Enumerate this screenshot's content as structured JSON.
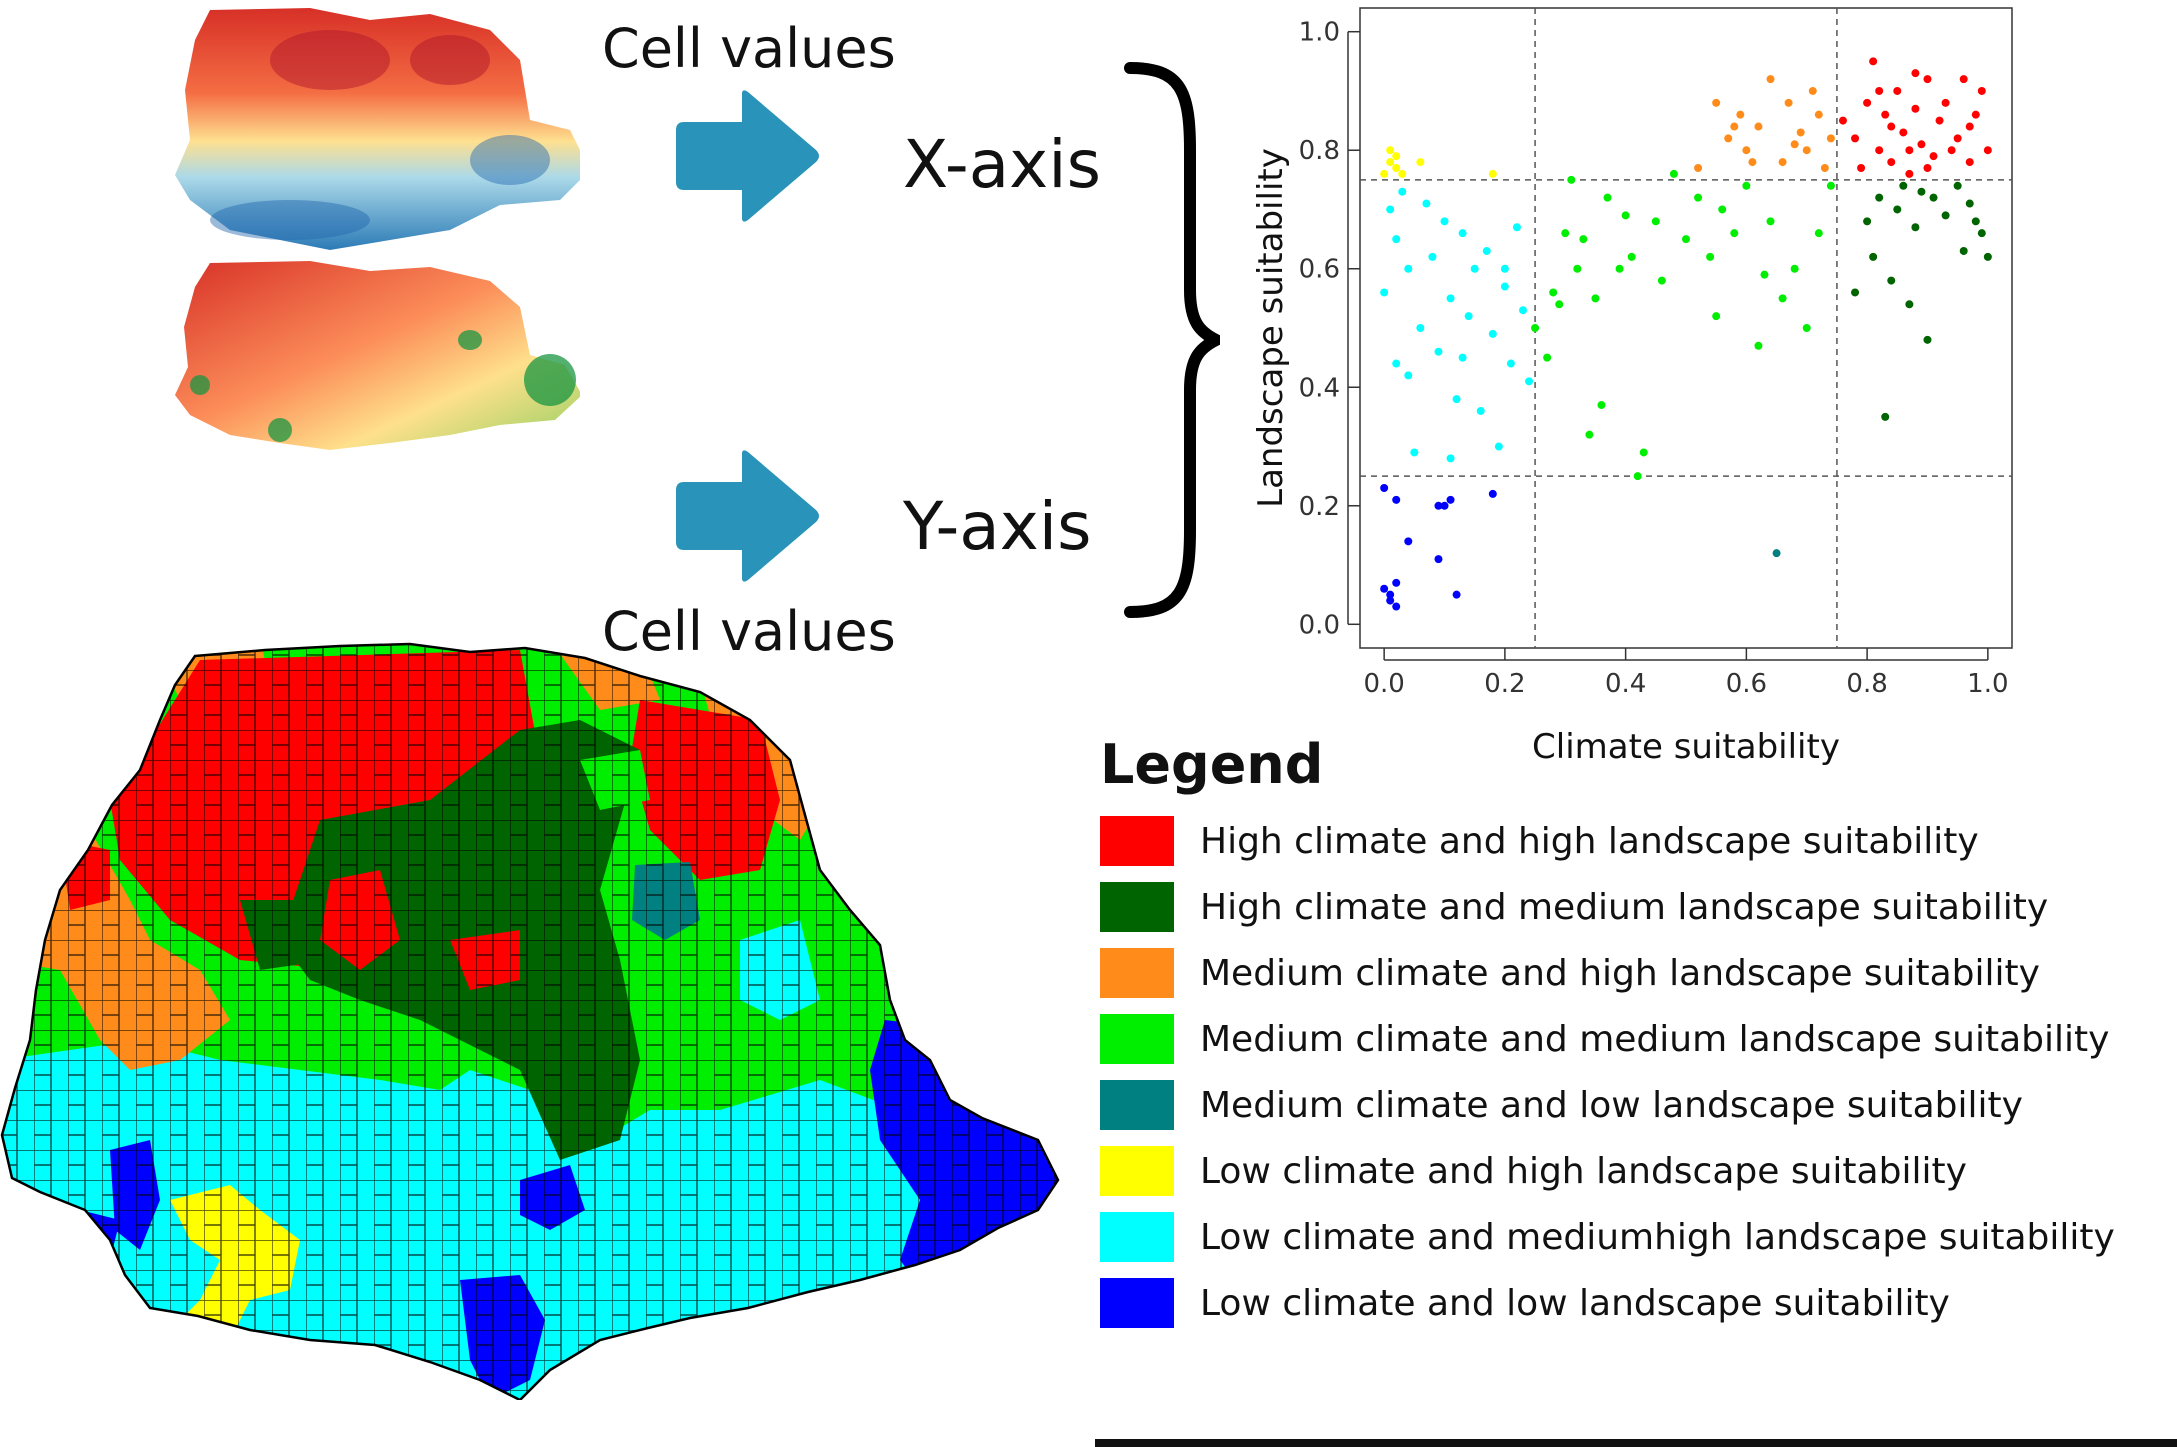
{
  "labels": {
    "cell_values_top": "Cell values",
    "cell_values_bottom": "Cell values",
    "x_axis": "X-axis",
    "y_axis": "Y-axis"
  },
  "colors": {
    "arrow": "#2a93b9",
    "high_high": "#ff0000",
    "high_medium": "#006400",
    "medium_high": "#ff8c1a",
    "medium_medium": "#00ee00",
    "medium_low": "#008080",
    "low_high": "#ffff00",
    "low_mediumhigh": "#00ffff",
    "low_low": "#0000ff"
  },
  "chart_data": {
    "type": "scatter",
    "xlabel": "Climate suitability",
    "ylabel": "Landscape suitability",
    "xlim": [
      0,
      1
    ],
    "ylim": [
      0,
      1
    ],
    "xticks": [
      "0.0",
      "0.2",
      "0.4",
      "0.6",
      "0.8",
      "1.0"
    ],
    "yticks": [
      "0.0",
      "0.2",
      "0.4",
      "0.6",
      "0.8",
      "1.0"
    ],
    "reference_lines": {
      "x": [
        0.25,
        0.75
      ],
      "y": [
        0.25,
        0.75
      ]
    },
    "grid": false,
    "series": [
      {
        "color": "#ff0000",
        "points": [
          [
            0.76,
            0.85
          ],
          [
            0.78,
            0.82
          ],
          [
            0.8,
            0.88
          ],
          [
            0.81,
            0.95
          ],
          [
            0.82,
            0.8
          ],
          [
            0.83,
            0.86
          ],
          [
            0.84,
            0.78
          ],
          [
            0.85,
            0.9
          ],
          [
            0.86,
            0.83
          ],
          [
            0.87,
            0.76
          ],
          [
            0.88,
            0.87
          ],
          [
            0.89,
            0.81
          ],
          [
            0.9,
            0.92
          ],
          [
            0.91,
            0.79
          ],
          [
            0.92,
            0.85
          ],
          [
            0.93,
            0.88
          ],
          [
            0.95,
            0.82
          ],
          [
            0.96,
            0.92
          ],
          [
            0.97,
            0.78
          ],
          [
            0.98,
            0.86
          ],
          [
            0.99,
            0.9
          ],
          [
            1.0,
            0.8
          ],
          [
            0.79,
            0.77
          ],
          [
            0.84,
            0.84
          ],
          [
            0.87,
            0.8
          ],
          [
            0.9,
            0.77
          ],
          [
            0.94,
            0.8
          ],
          [
            0.97,
            0.84
          ],
          [
            0.82,
            0.9
          ],
          [
            0.88,
            0.93
          ]
        ]
      },
      {
        "color": "#006400",
        "points": [
          [
            0.78,
            0.56
          ],
          [
            0.8,
            0.68
          ],
          [
            0.82,
            0.72
          ],
          [
            0.83,
            0.35
          ],
          [
            0.84,
            0.58
          ],
          [
            0.85,
            0.7
          ],
          [
            0.86,
            0.74
          ],
          [
            0.87,
            0.54
          ],
          [
            0.88,
            0.67
          ],
          [
            0.9,
            0.48
          ],
          [
            0.91,
            0.72
          ],
          [
            0.93,
            0.69
          ],
          [
            0.95,
            0.74
          ],
          [
            0.96,
            0.63
          ],
          [
            0.97,
            0.71
          ],
          [
            0.98,
            0.68
          ],
          [
            1.0,
            0.62
          ],
          [
            0.99,
            0.66
          ],
          [
            0.81,
            0.62
          ],
          [
            0.89,
            0.73
          ]
        ]
      },
      {
        "color": "#ff8c1a",
        "points": [
          [
            0.52,
            0.77
          ],
          [
            0.55,
            0.88
          ],
          [
            0.57,
            0.82
          ],
          [
            0.59,
            0.86
          ],
          [
            0.6,
            0.8
          ],
          [
            0.62,
            0.84
          ],
          [
            0.64,
            0.92
          ],
          [
            0.66,
            0.78
          ],
          [
            0.67,
            0.88
          ],
          [
            0.69,
            0.83
          ],
          [
            0.7,
            0.8
          ],
          [
            0.72,
            0.86
          ],
          [
            0.74,
            0.82
          ],
          [
            0.73,
            0.77
          ],
          [
            0.61,
            0.78
          ],
          [
            0.68,
            0.81
          ],
          [
            0.71,
            0.9
          ],
          [
            0.58,
            0.84
          ]
        ]
      },
      {
        "color": "#00ee00",
        "points": [
          [
            0.25,
            0.5
          ],
          [
            0.27,
            0.45
          ],
          [
            0.28,
            0.56
          ],
          [
            0.3,
            0.66
          ],
          [
            0.31,
            0.75
          ],
          [
            0.32,
            0.6
          ],
          [
            0.33,
            0.65
          ],
          [
            0.35,
            0.55
          ],
          [
            0.36,
            0.37
          ],
          [
            0.37,
            0.72
          ],
          [
            0.39,
            0.6
          ],
          [
            0.4,
            0.69
          ],
          [
            0.41,
            0.62
          ],
          [
            0.42,
            0.25
          ],
          [
            0.43,
            0.29
          ],
          [
            0.45,
            0.68
          ],
          [
            0.46,
            0.58
          ],
          [
            0.48,
            0.76
          ],
          [
            0.5,
            0.65
          ],
          [
            0.52,
            0.72
          ],
          [
            0.54,
            0.62
          ],
          [
            0.56,
            0.7
          ],
          [
            0.58,
            0.66
          ],
          [
            0.6,
            0.74
          ],
          [
            0.62,
            0.47
          ],
          [
            0.64,
            0.68
          ],
          [
            0.66,
            0.55
          ],
          [
            0.68,
            0.6
          ],
          [
            0.7,
            0.5
          ],
          [
            0.72,
            0.66
          ],
          [
            0.74,
            0.74
          ],
          [
            0.34,
            0.32
          ],
          [
            0.29,
            0.54
          ],
          [
            0.55,
            0.52
          ],
          [
            0.63,
            0.59
          ]
        ]
      },
      {
        "color": "#008080",
        "points": [
          [
            0.65,
            0.12
          ]
        ]
      },
      {
        "color": "#ffff00",
        "points": [
          [
            0.0,
            0.76
          ],
          [
            0.01,
            0.8
          ],
          [
            0.01,
            0.78
          ],
          [
            0.02,
            0.77
          ],
          [
            0.02,
            0.79
          ],
          [
            0.03,
            0.76
          ],
          [
            0.06,
            0.78
          ],
          [
            0.18,
            0.76
          ]
        ]
      },
      {
        "color": "#00ffff",
        "points": [
          [
            0.0,
            0.56
          ],
          [
            0.01,
            0.7
          ],
          [
            0.02,
            0.65
          ],
          [
            0.02,
            0.44
          ],
          [
            0.03,
            0.73
          ],
          [
            0.04,
            0.6
          ],
          [
            0.05,
            0.29
          ],
          [
            0.06,
            0.5
          ],
          [
            0.08,
            0.62
          ],
          [
            0.09,
            0.46
          ],
          [
            0.1,
            0.68
          ],
          [
            0.11,
            0.55
          ],
          [
            0.12,
            0.38
          ],
          [
            0.13,
            0.66
          ],
          [
            0.14,
            0.52
          ],
          [
            0.15,
            0.6
          ],
          [
            0.16,
            0.36
          ],
          [
            0.17,
            0.63
          ],
          [
            0.18,
            0.49
          ],
          [
            0.19,
            0.3
          ],
          [
            0.2,
            0.57
          ],
          [
            0.21,
            0.44
          ],
          [
            0.22,
            0.67
          ],
          [
            0.23,
            0.53
          ],
          [
            0.24,
            0.41
          ],
          [
            0.11,
            0.28
          ],
          [
            0.04,
            0.42
          ],
          [
            0.07,
            0.71
          ],
          [
            0.13,
            0.45
          ],
          [
            0.2,
            0.6
          ]
        ]
      },
      {
        "color": "#0000ff",
        "points": [
          [
            0.0,
            0.23
          ],
          [
            0.01,
            0.05
          ],
          [
            0.01,
            0.04
          ],
          [
            0.02,
            0.07
          ],
          [
            0.02,
            0.03
          ],
          [
            0.02,
            0.21
          ],
          [
            0.04,
            0.14
          ],
          [
            0.09,
            0.2
          ],
          [
            0.1,
            0.2
          ],
          [
            0.11,
            0.21
          ],
          [
            0.12,
            0.05
          ],
          [
            0.18,
            0.22
          ],
          [
            0.09,
            0.11
          ],
          [
            0.0,
            0.06
          ]
        ]
      }
    ]
  },
  "legend": {
    "title": "Legend",
    "items": [
      {
        "label": "High climate and high landscape suitability",
        "color": "#ff0000"
      },
      {
        "label": "High climate and medium landscape suitability",
        "color": "#006400"
      },
      {
        "label": "Medium climate and high landscape suitability",
        "color": "#ff8c1a"
      },
      {
        "label": "Medium climate and medium landscape suitability",
        "color": "#00ee00"
      },
      {
        "label": "Medium climate and low landscape suitability",
        "color": "#008080"
      },
      {
        "label": "Low climate and high landscape suitability",
        "color": "#ffff00"
      },
      {
        "label": "Low climate and mediumhigh landscape suitability",
        "color": "#00ffff"
      },
      {
        "label": "Low climate and low landscape suitability",
        "color": "#0000ff"
      }
    ]
  }
}
